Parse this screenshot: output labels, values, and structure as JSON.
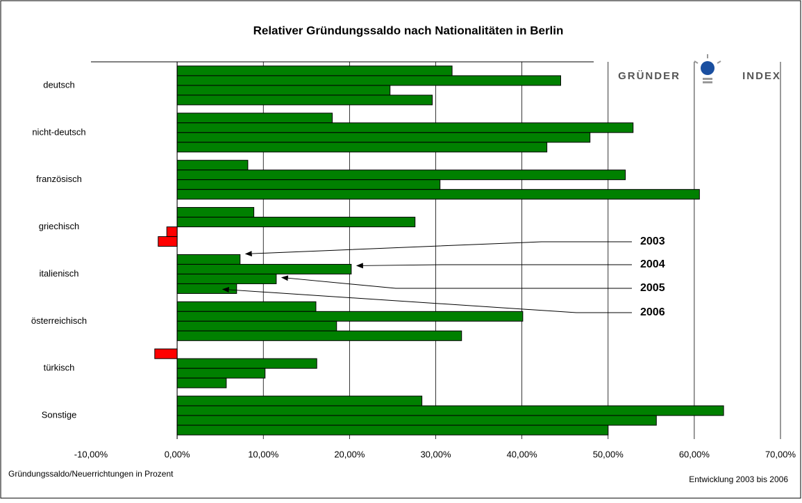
{
  "chart_data": {
    "type": "hbar",
    "title": "Relativer Gründungssaldo nach Nationalitäten in Berlin",
    "logo": [
      "GRÜNDER",
      "INDEX"
    ],
    "x_axis_label": "Gründungssaldo/Neuerrichtungen in Prozent",
    "note": "Entwicklung 2003 bis 2006",
    "categories": [
      "deutsch",
      "nicht-deutsch",
      "französisch",
      "griechisch",
      "italienisch",
      "österreichisch",
      "türkisch",
      "Sonstige"
    ],
    "series": [
      {
        "name": "2003",
        "color": "#008000",
        "values": [
          31.9,
          18.0,
          8.2,
          8.9,
          7.3,
          16.1,
          -2.6,
          28.4
        ]
      },
      {
        "name": "2004",
        "color": "#008000",
        "values": [
          44.5,
          52.9,
          52.0,
          27.6,
          20.2,
          40.1,
          16.2,
          63.4
        ]
      },
      {
        "name": "2005",
        "color": "#008000",
        "values": [
          24.7,
          47.9,
          30.5,
          -1.2,
          11.5,
          18.5,
          10.2,
          55.6
        ]
      },
      {
        "name": "2006",
        "color": "#008000",
        "values": [
          29.6,
          42.9,
          60.6,
          -2.2,
          6.9,
          33.0,
          5.7,
          50.0
        ]
      }
    ],
    "negative_color": "#ff0000",
    "xlim": [
      -10,
      70
    ],
    "xticks": [
      {
        "value": -10,
        "label": "-10,00%"
      },
      {
        "value": 0,
        "label": "0,00%"
      },
      {
        "value": 10,
        "label": "10,00%"
      },
      {
        "value": 20,
        "label": "20,00%"
      },
      {
        "value": 30,
        "label": "30,00%"
      },
      {
        "value": 40,
        "label": "40,00%"
      },
      {
        "value": 50,
        "label": "50,00%"
      },
      {
        "value": 60,
        "label": "60,00%"
      },
      {
        "value": 70,
        "label": "70,00%"
      }
    ],
    "grid": true
  }
}
